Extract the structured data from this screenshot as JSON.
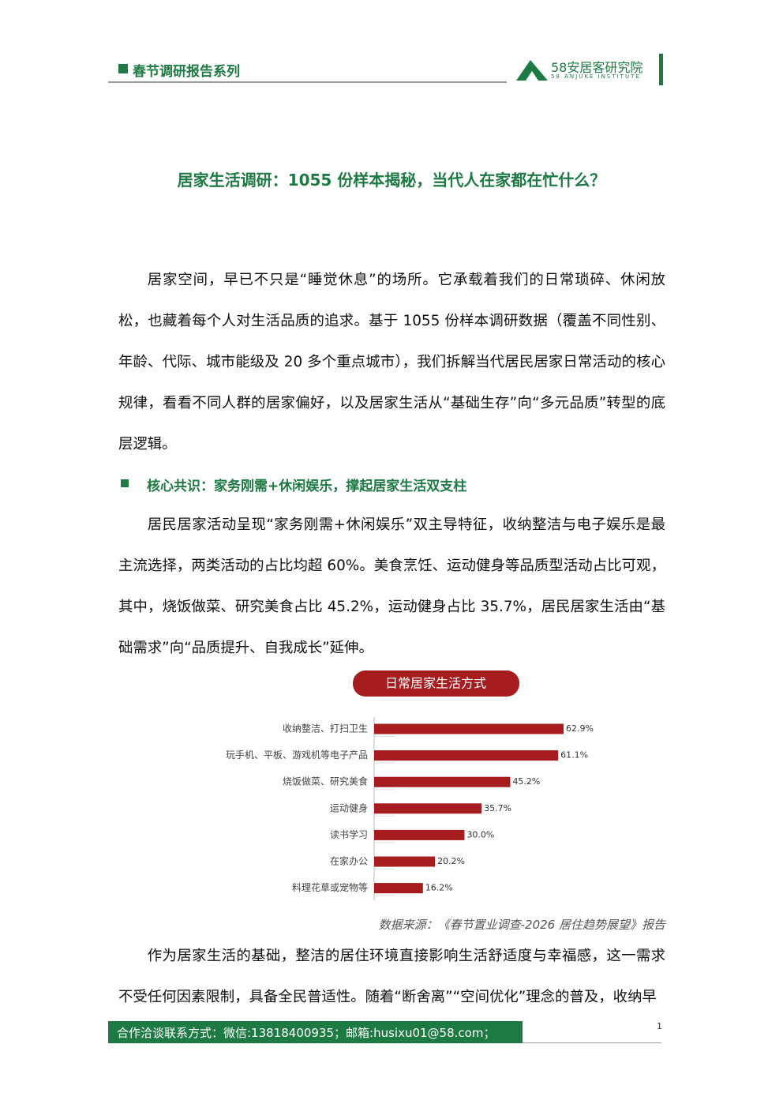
{
  "header": {
    "series_title": "春节调研报告系列",
    "logo_name": "58安居客研究院",
    "logo_subtitle": "58 ANJUKE INSTITUTE"
  },
  "title": "居家生活调研：1055 份样本揭秘，当代人在家都在忙什么？",
  "paragraphs": [
    "居家空间，早已不只是“睡觉休息”的场所。它承载着我们的日常琐碎、休闲放松，也藏着每个人对生活品质的追求。基于 1055 份样本调研数据（覆盖不同性别、年龄、代际、城市能级及 20 多个重点城市），我们拆解当代居民居家日常活动的核心规律，看看不同人群的居家偏好，以及居家生活从“基础生存”向“多元品质”转型的底层逻辑。",
    "居民居家活动呈现“家务刚需+休闲娱乐”双主导特征，收纳整洁与电子娱乐是最主流选择，两类活动的占比均超 60%。美食烹饪、运动健身等品质型活动占比可观，其中，烧饭做菜、研究美食占比 45.2%，运动健身占比 35.7%，居民居家生活由“基础需求”向“品质提升、自我成长”延伸。",
    "作为居家生活的基础，整洁的居住环境直接影响生活舒适度与幸福感，这一需求不受任何因素限制，具备全民普适性。随着“断舍离”“空间优化”理念的普及，收纳早"
  ],
  "section_heading": "核心共识：家务刚需+休闲娱乐，撑起居家生活双支柱",
  "chart_data": {
    "type": "bar",
    "orientation": "horizontal",
    "title": "日常居家生活方式",
    "categories": [
      "收纳整洁、打扫卫生",
      "玩手机、平板、游戏机等电子产品",
      "烧饭做菜、研究美食",
      "运动健身",
      "读书学习",
      "在家办公",
      "料理花草或宠物等"
    ],
    "values": [
      62.9,
      61.1,
      45.2,
      35.7,
      30.0,
      20.2,
      16.2
    ],
    "value_labels": [
      "62.9%",
      "61.1%",
      "45.2%",
      "35.7%",
      "30.0%",
      "20.2%",
      "16.2%"
    ],
    "color": "#a61c1f"
  },
  "source": "数据来源：《春节置业调查-2026 居住趋势展望》报告",
  "footer": {
    "contact": "合作洽谈联系方式：微信:13818400935；邮箱:husixu01@58.com；",
    "page_number": "1"
  }
}
